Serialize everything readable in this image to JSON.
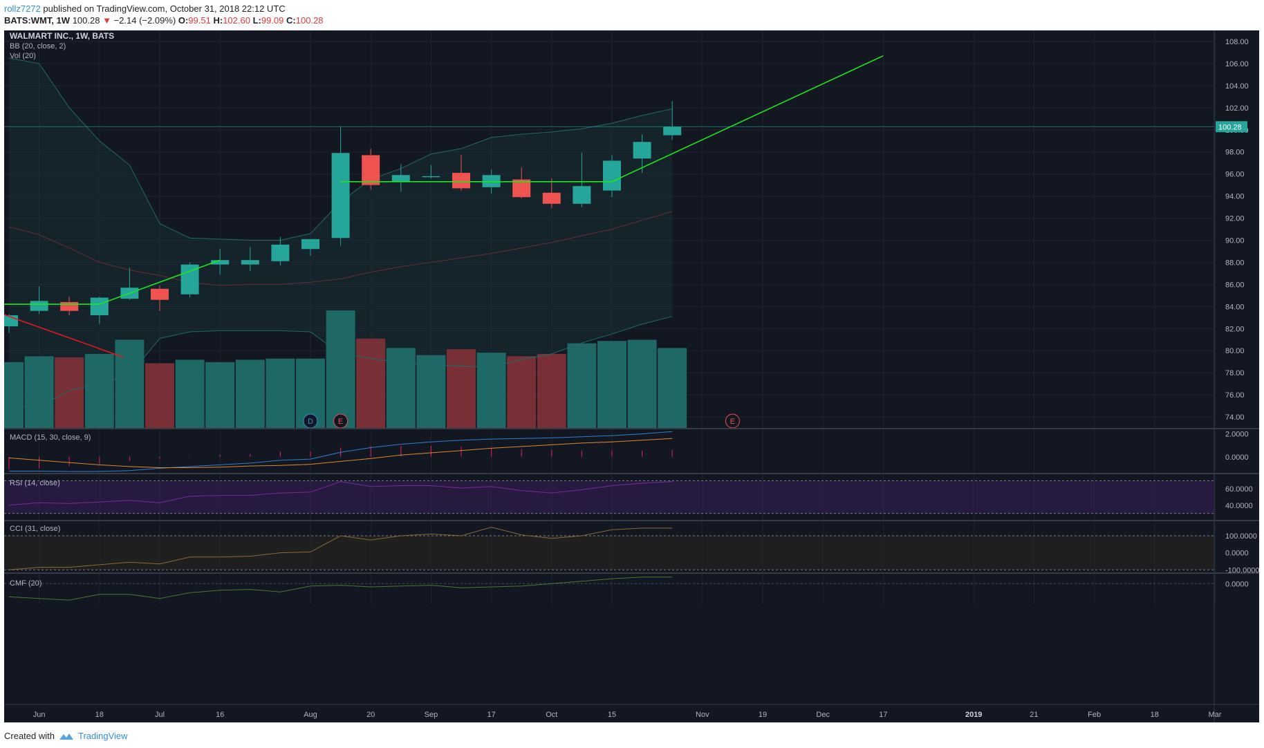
{
  "header": {
    "user": "rollz7272",
    "published": "published on TradingView.com, October 31, 2018 22:12 UTC",
    "symbol": "BATS:WMT, 1W",
    "price": "100.28",
    "change_arrow": "▼",
    "change": "−2.14 (−2.09%)",
    "o_label": "O:",
    "o_val": "99.51",
    "h_label": "H:",
    "h_val": "102.60",
    "l_label": "L:",
    "l_val": "99.09",
    "c_label": "C:",
    "c_val": "100.28"
  },
  "footer": {
    "created": "Created with",
    "brand": "TradingView",
    "logo_icon": "tradingview-logo-icon"
  },
  "colors": {
    "background": "#131722",
    "up": "#26a69a",
    "down": "#ef5350",
    "trend_green": "#1ee61e",
    "trend_red": "#e01b1b",
    "grid": "#1e2433",
    "text": "#b2b5be",
    "bb_band": "#1f6b66",
    "bb_mid": "#6b2a38",
    "macd": "#2f7fd0",
    "signal": "#e08a2b",
    "rsi": "#7b2a9a",
    "cci": "#8a6a33",
    "cmf": "#4a7a2a"
  },
  "chart_data": {
    "type": "candlestick",
    "title": "WALMART INC., 1W, BATS",
    "indicator_labels": {
      "bb": "BB (20, close, 2)",
      "vol": "Vol (20)"
    },
    "y_axis": {
      "min": 73,
      "max": 109,
      "ticks": [
        "108.00",
        "106.00",
        "104.00",
        "102.00",
        "100.00",
        "98.00",
        "96.00",
        "94.00",
        "92.00",
        "90.00",
        "88.00",
        "86.00",
        "84.00",
        "82.00",
        "80.00",
        "78.00",
        "76.00",
        "74.00"
      ]
    },
    "last_price_label": "100.28",
    "x_axis_labels": [
      {
        "i": 1,
        "text": "Jun"
      },
      {
        "i": 3,
        "text": "18"
      },
      {
        "i": 5,
        "text": "Jul"
      },
      {
        "i": 7,
        "text": "16"
      },
      {
        "i": 10,
        "text": "Aug"
      },
      {
        "i": 12,
        "text": "20"
      },
      {
        "i": 14,
        "text": "Sep"
      },
      {
        "i": 16,
        "text": "17"
      },
      {
        "i": 18,
        "text": "Oct"
      },
      {
        "i": 20,
        "text": "15"
      },
      {
        "i": 23,
        "text": "Nov"
      },
      {
        "i": 25,
        "text": "19"
      },
      {
        "i": 27,
        "text": "Dec"
      },
      {
        "i": 29,
        "text": "17"
      },
      {
        "i": 32,
        "text": "2019"
      },
      {
        "i": 34,
        "text": "21"
      },
      {
        "i": 36,
        "text": "Feb"
      },
      {
        "i": 38,
        "text": "18"
      },
      {
        "i": 40,
        "text": "Mar"
      }
    ],
    "candles": [
      {
        "o": 82.2,
        "h": 83.3,
        "l": 81.6,
        "c": 83.2
      },
      {
        "o": 83.6,
        "h": 85.8,
        "l": 83.3,
        "c": 84.5
      },
      {
        "o": 84.4,
        "h": 84.9,
        "l": 83.2,
        "c": 83.6
      },
      {
        "o": 83.2,
        "h": 84.9,
        "l": 82.4,
        "c": 84.8
      },
      {
        "o": 84.7,
        "h": 87.5,
        "l": 84.6,
        "c": 85.7
      },
      {
        "o": 85.6,
        "h": 85.9,
        "l": 83.6,
        "c": 84.6
      },
      {
        "o": 85.1,
        "h": 88.0,
        "l": 84.8,
        "c": 87.8
      },
      {
        "o": 87.8,
        "h": 89.2,
        "l": 86.9,
        "c": 88.2
      },
      {
        "o": 87.8,
        "h": 89.4,
        "l": 87.2,
        "c": 88.2
      },
      {
        "o": 88.1,
        "h": 90.3,
        "l": 87.7,
        "c": 89.6
      },
      {
        "o": 89.2,
        "h": 90.1,
        "l": 88.6,
        "c": 90.1
      },
      {
        "o": 90.2,
        "h": 100.3,
        "l": 89.5,
        "c": 97.9
      },
      {
        "o": 97.7,
        "h": 98.3,
        "l": 94.6,
        "c": 95.0
      },
      {
        "o": 95.3,
        "h": 96.9,
        "l": 94.4,
        "c": 95.9
      },
      {
        "o": 95.8,
        "h": 96.8,
        "l": 95.6,
        "c": 95.8
      },
      {
        "o": 96.1,
        "h": 97.7,
        "l": 94.5,
        "c": 94.7
      },
      {
        "o": 94.8,
        "h": 96.4,
        "l": 94.2,
        "c": 95.9
      },
      {
        "o": 95.5,
        "h": 96.6,
        "l": 93.8,
        "c": 93.9
      },
      {
        "o": 94.3,
        "h": 95.6,
        "l": 92.9,
        "c": 93.3
      },
      {
        "o": 93.3,
        "h": 97.9,
        "l": 93.0,
        "c": 94.9
      },
      {
        "o": 94.5,
        "h": 97.7,
        "l": 93.9,
        "c": 97.2
      },
      {
        "o": 97.4,
        "h": 99.6,
        "l": 96.1,
        "c": 98.9
      },
      {
        "o": 99.51,
        "h": 102.6,
        "l": 99.09,
        "c": 100.28
      }
    ],
    "volume": [
      {
        "v": 0.56,
        "up": true
      },
      {
        "v": 0.61,
        "up": true
      },
      {
        "v": 0.6,
        "up": false
      },
      {
        "v": 0.63,
        "up": true
      },
      {
        "v": 0.75,
        "up": true
      },
      {
        "v": 0.55,
        "up": false
      },
      {
        "v": 0.58,
        "up": true
      },
      {
        "v": 0.56,
        "up": true
      },
      {
        "v": 0.58,
        "up": true
      },
      {
        "v": 0.59,
        "up": true
      },
      {
        "v": 0.59,
        "up": true
      },
      {
        "v": 1.0,
        "up": true
      },
      {
        "v": 0.76,
        "up": false
      },
      {
        "v": 0.68,
        "up": true
      },
      {
        "v": 0.62,
        "up": true
      },
      {
        "v": 0.67,
        "up": false
      },
      {
        "v": 0.64,
        "up": true
      },
      {
        "v": 0.61,
        "up": false
      },
      {
        "v": 0.63,
        "up": false
      },
      {
        "v": 0.72,
        "up": true
      },
      {
        "v": 0.74,
        "up": true
      },
      {
        "v": 0.75,
        "up": true
      },
      {
        "v": 0.68,
        "up": true
      }
    ],
    "bollinger": {
      "upper": [
        106.5,
        106.0,
        102.0,
        99.0,
        96.8,
        91.5,
        90.2,
        90.1,
        90.0,
        90.0,
        90.6,
        93.5,
        95.5,
        96.5,
        97.8,
        98.3,
        99.3,
        99.6,
        99.8,
        100.1,
        100.6,
        101.3,
        101.9
      ],
      "middle": [
        91.2,
        90.5,
        89.3,
        88.0,
        87.3,
        86.8,
        86.2,
        85.9,
        86.0,
        86.0,
        86.2,
        86.5,
        87.1,
        87.6,
        88.0,
        88.4,
        88.8,
        89.3,
        89.8,
        90.4,
        91.0,
        91.8,
        92.6
      ],
      "lower": [
        75.0,
        74.9,
        76.4,
        77.0,
        77.8,
        81.1,
        81.7,
        81.8,
        81.8,
        81.8,
        81.7,
        79.7,
        79.3,
        78.9,
        78.7,
        78.6,
        78.5,
        79.2,
        79.7,
        80.7,
        81.5,
        82.4,
        83.1
      ]
    },
    "trendlines": [
      {
        "color": "green",
        "points": [
          [
            -0.2,
            84.2
          ],
          [
            3,
            84.2
          ],
          [
            7,
            88.2
          ]
        ]
      },
      {
        "color": "green",
        "points": [
          [
            11,
            95.3
          ],
          [
            20,
            95.3
          ],
          [
            29,
            106.7
          ]
        ]
      },
      {
        "color": "red",
        "points": [
          [
            -0.2,
            83.3
          ],
          [
            3.8,
            79.4
          ]
        ]
      }
    ],
    "event_markers": [
      {
        "i": 10,
        "text": "D",
        "type": "dividend"
      },
      {
        "i": 11,
        "text": "E",
        "type": "earnings"
      },
      {
        "i": 24,
        "text": "E",
        "type": "earnings"
      }
    ],
    "macd": {
      "label": "MACD (15, 30, close, 9)",
      "ticks": [
        "2.0000",
        "0.0000"
      ],
      "ylim": [
        -1.4,
        2.4
      ],
      "macd": [
        -1.25,
        -1.25,
        -1.28,
        -1.28,
        -1.2,
        -1.0,
        -0.85,
        -0.7,
        -0.55,
        -0.3,
        -0.2,
        0.4,
        0.8,
        1.1,
        1.3,
        1.45,
        1.55,
        1.6,
        1.65,
        1.75,
        1.85,
        2.0,
        2.2
      ],
      "signal": [
        -0.1,
        -0.3,
        -0.5,
        -0.7,
        -0.85,
        -0.95,
        -0.95,
        -0.9,
        -0.8,
        -0.75,
        -0.65,
        -0.4,
        -0.15,
        0.15,
        0.35,
        0.55,
        0.75,
        0.9,
        1.05,
        1.2,
        1.3,
        1.45,
        1.6
      ],
      "histogram": [
        -1.1,
        -1.0,
        -0.8,
        -0.6,
        -0.35,
        -0.15,
        0.05,
        0.2,
        0.25,
        0.45,
        0.45,
        0.8,
        0.95,
        0.95,
        0.95,
        0.9,
        0.8,
        0.7,
        0.6,
        0.55,
        0.55,
        0.55,
        0.6
      ]
    },
    "rsi": {
      "label": "RSI (14, close)",
      "ticks": [
        "60.0000",
        "40.0000"
      ],
      "ylim": [
        22,
        78
      ],
      "band": [
        30,
        70
      ],
      "values": [
        40,
        43,
        42,
        44,
        46,
        43,
        51,
        52,
        52,
        55,
        56,
        69,
        63,
        64,
        64,
        61,
        63,
        58,
        55,
        59,
        64,
        67,
        69
      ]
    },
    "cci": {
      "label": "CCI (31, close)",
      "ticks": [
        "100.0000",
        "0.0000",
        "-100.0000"
      ],
      "ylim": [
        -115,
        185
      ],
      "band": [
        -100,
        100
      ],
      "values": [
        -100,
        -85,
        -85,
        -70,
        -55,
        -65,
        -25,
        -25,
        -20,
        0,
        5,
        100,
        75,
        100,
        110,
        100,
        150,
        105,
        85,
        100,
        135,
        145,
        145
      ]
    },
    "cmf": {
      "label": "CMF (20)",
      "ticks": [
        "0.0000"
      ],
      "ylim": [
        -0.25,
        0.12
      ],
      "values": [
        -0.16,
        -0.18,
        -0.2,
        -0.13,
        -0.13,
        -0.18,
        -0.11,
        -0.08,
        -0.07,
        -0.1,
        -0.03,
        -0.02,
        -0.04,
        -0.03,
        -0.02,
        -0.05,
        -0.04,
        -0.03,
        0.0,
        0.03,
        0.06,
        0.08,
        0.08
      ]
    }
  }
}
